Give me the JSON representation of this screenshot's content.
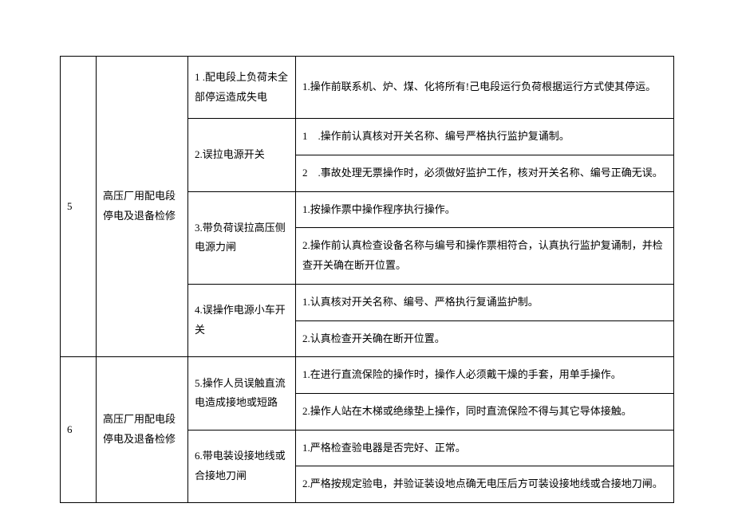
{
  "table": {
    "columns": {
      "num_width": 45,
      "task_width": 115,
      "risk_width": 135
    },
    "style": {
      "border_color": "#000000",
      "background_color": "#ffffff",
      "font_size": 13,
      "font_family": "SimSun",
      "text_color": "#000000",
      "line_height": 1.9
    },
    "rows": [
      {
        "num": "5",
        "task": "高压厂用配电段停电及退备检修",
        "risks": [
          {
            "label": "1 .配电段上负荷未全部停运造成失电",
            "controls": [
              "1.操作前联系机、炉、煤、化将所有!己电段运行负荷根据运行方式使其停运。"
            ]
          },
          {
            "label": "2.误拉电源开关",
            "controls": [
              "1　.操作前认真核对开关名称、编号严格执行监护复诵制。",
              "2　.事故处理无票操作时，必须做好监护工作，核对开关名称、编号正确无误。"
            ]
          },
          {
            "label": "3.带负荷误拉高压侧电源力闸",
            "controls": [
              "1.按操作票中操作程序执行操作。",
              "2.操作前认真检查设备名称与编号和操作票相符合，认真执行监护复诵制，并检查开关确在断开位置。"
            ]
          },
          {
            "label": "4.误操作电源小车开关",
            "controls": [
              "1.认真核对开关名称、编号、严格执行复诵监护制。",
              "2.认真检查开关确在断开位置。"
            ]
          }
        ]
      },
      {
        "num": "6",
        "task": "高压厂用配电段停电及退备检修",
        "risks": [
          {
            "label": "5.操作人员误触直流电造成接地或短路",
            "controls": [
              "1.在进行直流保险的操作时，操作人必须戴干燥的手套，用单手操作。",
              "2.操作人站在木梯或绝缘垫上操作，同时直流保险不得与其它导体接触。"
            ]
          },
          {
            "label": "6.带电装设接地线或合接地刀闸",
            "controls": [
              "1.严格检查验电器是否完好、正常。",
              "2.严格按规定验电，并验证装设地点确无电压后方可装设接地线或合接地刀闸。"
            ]
          }
        ]
      }
    ]
  }
}
